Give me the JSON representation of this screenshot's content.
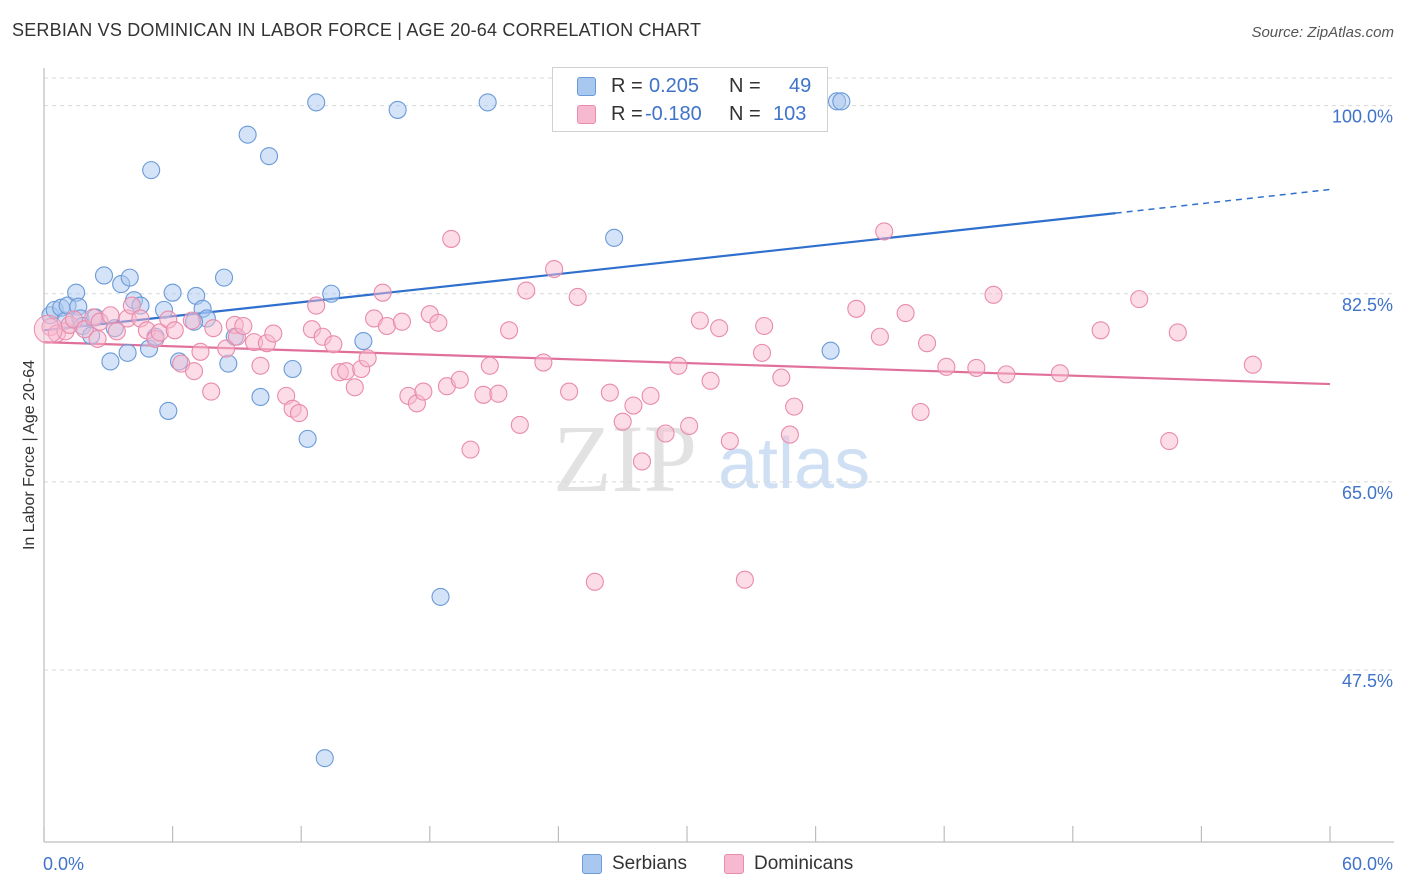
{
  "header": {
    "title": "SERBIAN VS DOMINICAN IN LABOR FORCE | AGE 20-64 CORRELATION CHART",
    "source": "Source: ZipAtlas.com"
  },
  "watermark": {
    "zip": "ZIP",
    "atlas": "atlas"
  },
  "legend_top": {
    "rows": [
      {
        "r_label": "R =",
        "r_value": "0.205",
        "n_label": "N =",
        "n_value": "49",
        "color": "#a9c8f0"
      },
      {
        "r_label": "R =",
        "r_value": "-0.180",
        "n_label": "N =",
        "n_value": "103",
        "color": "#f7b9cf"
      }
    ]
  },
  "legend_bottom": {
    "items": [
      {
        "label": "Serbians",
        "color": "#a9c8f0"
      },
      {
        "label": "Dominicans",
        "color": "#f7b9cf"
      }
    ]
  },
  "colors": {
    "blue_fill": "#a9c8f0",
    "blue_stroke": "#6a9ad8",
    "blue_line": "#2f6fcd",
    "pink_fill": "#f7b9cf",
    "pink_stroke": "#e98bab",
    "pink_line": "#e0709a",
    "tick_label": "#3f73c9",
    "grid": "#d8d8d8"
  },
  "chart_data": {
    "type": "scatter",
    "title": "SERBIAN VS DOMINICAN IN LABOR FORCE | AGE 20-64 CORRELATION CHART",
    "xlabel": "",
    "ylabel": "In Labor Force | Age 20-64",
    "xlim": [
      0,
      60
    ],
    "ylim": [
      31.5,
      103.5
    ],
    "x_tick_labels": [
      "0.0%",
      "60.0%"
    ],
    "y_ticks": [
      {
        "value": 100.0,
        "label": "100.0%"
      },
      {
        "value": 82.5,
        "label": "82.5%"
      },
      {
        "value": 65.0,
        "label": "65.0%"
      },
      {
        "value": 47.5,
        "label": "47.5%"
      }
    ],
    "grid": true,
    "legend_position": "top-center",
    "series": [
      {
        "name": "Serbians",
        "r": 0.205,
        "n": 49,
        "trend": {
          "x0": 0.0,
          "y0": 79.1,
          "x1": 50.0,
          "y1": 90.0,
          "dash_x1": 60.0,
          "dash_y1": 92.2
        },
        "points": [
          [
            0.3,
            80.5
          ],
          [
            0.5,
            81.0
          ],
          [
            0.8,
            81.2
          ],
          [
            1.0,
            80.0
          ],
          [
            1.1,
            81.4
          ],
          [
            1.5,
            82.6
          ],
          [
            1.6,
            81.3
          ],
          [
            1.7,
            80.2
          ],
          [
            1.8,
            79.5
          ],
          [
            2.2,
            78.6
          ],
          [
            2.4,
            80.3
          ],
          [
            2.8,
            84.2
          ],
          [
            3.1,
            76.2
          ],
          [
            3.3,
            79.3
          ],
          [
            3.6,
            83.4
          ],
          [
            3.9,
            77.0
          ],
          [
            4.0,
            84.0
          ],
          [
            4.2,
            81.9
          ],
          [
            4.5,
            81.4
          ],
          [
            4.9,
            77.4
          ],
          [
            5.0,
            94.0
          ],
          [
            5.2,
            78.5
          ],
          [
            5.6,
            81.0
          ],
          [
            5.8,
            71.6
          ],
          [
            6.0,
            82.6
          ],
          [
            6.3,
            76.2
          ],
          [
            7.1,
            82.3
          ],
          [
            7.4,
            81.1
          ],
          [
            7.6,
            80.2
          ],
          [
            7.0,
            79.9
          ],
          [
            8.4,
            84.0
          ],
          [
            8.6,
            76.0
          ],
          [
            8.9,
            78.5
          ],
          [
            9.5,
            97.3
          ],
          [
            10.1,
            72.9
          ],
          [
            10.5,
            95.3
          ],
          [
            11.6,
            75.5
          ],
          [
            12.3,
            69.0
          ],
          [
            12.7,
            100.3
          ],
          [
            13.1,
            39.3
          ],
          [
            13.4,
            82.5
          ],
          [
            14.9,
            78.1
          ],
          [
            16.5,
            99.6
          ],
          [
            18.5,
            54.3
          ],
          [
            20.7,
            100.3
          ],
          [
            26.6,
            87.7
          ],
          [
            36.7,
            77.2
          ],
          [
            37.0,
            100.4
          ],
          [
            37.2,
            100.4
          ]
        ]
      },
      {
        "name": "Dominicans",
        "r": -0.18,
        "n": 103,
        "trend": {
          "x0": 0.0,
          "y0": 78.0,
          "x1": 60.0,
          "y1": 74.1
        },
        "points": [
          [
            0.3,
            79.4
          ],
          [
            0.6,
            78.8
          ],
          [
            1.0,
            79.0
          ],
          [
            1.2,
            79.6
          ],
          [
            1.4,
            80.1
          ],
          [
            1.9,
            79.2
          ],
          [
            2.3,
            80.3
          ],
          [
            2.6,
            79.9
          ],
          [
            2.5,
            78.3
          ],
          [
            3.1,
            80.5
          ],
          [
            3.4,
            79.0
          ],
          [
            3.9,
            80.2
          ],
          [
            4.1,
            81.4
          ],
          [
            4.5,
            80.2
          ],
          [
            4.8,
            79.1
          ],
          [
            5.2,
            78.3
          ],
          [
            5.4,
            78.9
          ],
          [
            5.8,
            80.1
          ],
          [
            6.1,
            79.1
          ],
          [
            6.4,
            76.0
          ],
          [
            6.9,
            80.0
          ],
          [
            7.0,
            75.3
          ],
          [
            7.3,
            77.1
          ],
          [
            7.9,
            79.3
          ],
          [
            7.8,
            73.4
          ],
          [
            8.5,
            77.4
          ],
          [
            8.9,
            79.6
          ],
          [
            9.0,
            78.5
          ],
          [
            9.3,
            79.5
          ],
          [
            9.8,
            78.0
          ],
          [
            10.1,
            75.8
          ],
          [
            10.4,
            77.9
          ],
          [
            10.7,
            78.8
          ],
          [
            11.3,
            73.0
          ],
          [
            11.6,
            71.8
          ],
          [
            11.9,
            71.4
          ],
          [
            12.5,
            79.2
          ],
          [
            12.7,
            81.4
          ],
          [
            13.0,
            78.5
          ],
          [
            13.5,
            77.8
          ],
          [
            13.8,
            75.2
          ],
          [
            14.1,
            75.3
          ],
          [
            14.5,
            73.8
          ],
          [
            14.8,
            75.5
          ],
          [
            15.1,
            76.5
          ],
          [
            15.4,
            80.2
          ],
          [
            15.8,
            82.6
          ],
          [
            16.0,
            79.5
          ],
          [
            16.7,
            79.9
          ],
          [
            17.0,
            73.0
          ],
          [
            17.4,
            72.3
          ],
          [
            17.7,
            73.4
          ],
          [
            18.0,
            80.6
          ],
          [
            18.4,
            79.8
          ],
          [
            18.8,
            73.9
          ],
          [
            19.0,
            87.6
          ],
          [
            19.4,
            74.5
          ],
          [
            19.9,
            68.0
          ],
          [
            20.5,
            73.1
          ],
          [
            20.8,
            75.8
          ],
          [
            21.2,
            73.2
          ],
          [
            21.7,
            79.1
          ],
          [
            22.2,
            70.3
          ],
          [
            22.5,
            82.8
          ],
          [
            23.3,
            76.1
          ],
          [
            23.8,
            84.8
          ],
          [
            24.5,
            73.4
          ],
          [
            24.9,
            82.2
          ],
          [
            25.7,
            55.7
          ],
          [
            26.4,
            73.3
          ],
          [
            27.0,
            70.6
          ],
          [
            27.5,
            72.1
          ],
          [
            27.9,
            66.9
          ],
          [
            28.3,
            73.0
          ],
          [
            29.0,
            69.5
          ],
          [
            29.6,
            75.8
          ],
          [
            30.1,
            70.2
          ],
          [
            30.6,
            80.0
          ],
          [
            31.1,
            74.4
          ],
          [
            31.5,
            79.3
          ],
          [
            32.0,
            68.8
          ],
          [
            32.7,
            55.9
          ],
          [
            33.5,
            77.0
          ],
          [
            33.6,
            79.5
          ],
          [
            34.4,
            74.7
          ],
          [
            34.8,
            69.4
          ],
          [
            35.0,
            72.0
          ],
          [
            37.9,
            81.1
          ],
          [
            39.0,
            78.5
          ],
          [
            39.2,
            88.3
          ],
          [
            40.2,
            80.7
          ],
          [
            40.9,
            71.5
          ],
          [
            41.2,
            77.9
          ],
          [
            42.1,
            75.7
          ],
          [
            43.5,
            75.6
          ],
          [
            44.3,
            82.4
          ],
          [
            44.9,
            75.0
          ],
          [
            47.4,
            75.1
          ],
          [
            49.3,
            79.1
          ],
          [
            51.1,
            82.0
          ],
          [
            52.5,
            68.8
          ],
          [
            52.9,
            78.9
          ],
          [
            56.4,
            75.9
          ]
        ]
      }
    ]
  }
}
